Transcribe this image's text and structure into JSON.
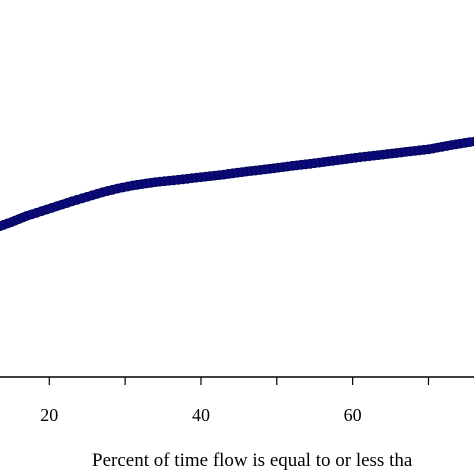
{
  "chart_data": {
    "type": "line",
    "xlabel": "Percent of time flow is equal to or less tha",
    "ylabel": "",
    "title": "",
    "xlim": [
      13.5,
      76
    ],
    "ylim": [
      0,
      1
    ],
    "xticks": [
      20,
      40,
      60
    ],
    "grid": false,
    "series": [
      {
        "color": "#0a0a78",
        "points": [
          [
            13.5,
            0.4
          ],
          [
            15,
            0.411
          ],
          [
            17,
            0.427
          ],
          [
            19,
            0.44
          ],
          [
            21,
            0.453
          ],
          [
            23,
            0.466
          ],
          [
            25,
            0.478
          ],
          [
            27,
            0.49
          ],
          [
            29,
            0.5
          ],
          [
            31,
            0.508
          ],
          [
            34,
            0.517
          ],
          [
            37,
            0.523
          ],
          [
            40,
            0.53
          ],
          [
            43,
            0.537
          ],
          [
            46,
            0.545
          ],
          [
            49,
            0.552
          ],
          [
            52,
            0.56
          ],
          [
            55,
            0.567
          ],
          [
            58,
            0.575
          ],
          [
            61,
            0.583
          ],
          [
            64,
            0.59
          ],
          [
            67,
            0.597
          ],
          [
            70,
            0.604
          ],
          [
            73,
            0.615
          ],
          [
            76,
            0.625
          ]
        ]
      }
    ]
  }
}
